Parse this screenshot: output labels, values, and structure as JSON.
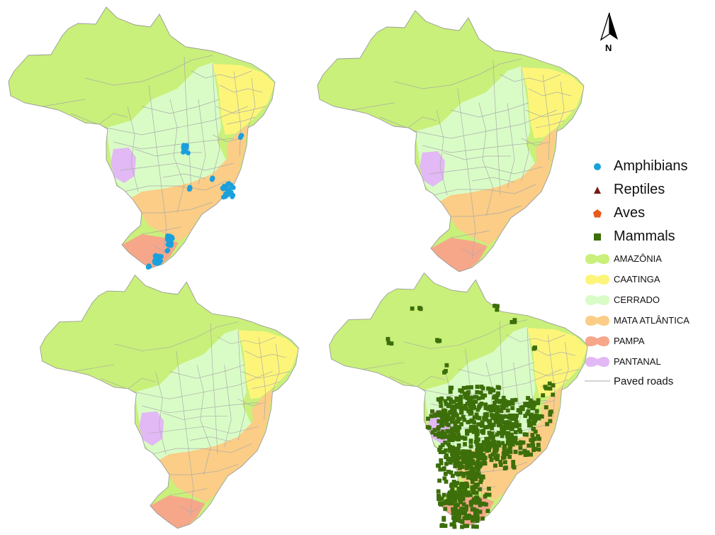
{
  "north_arrow": {
    "label": "N"
  },
  "legend": {
    "species": [
      {
        "label": "Amphibians",
        "symbol": "circle",
        "color": "#1aa0dc"
      },
      {
        "label": "Reptiles",
        "symbol": "triangle",
        "color": "#7a1a12"
      },
      {
        "label": "Aves",
        "symbol": "pentagon",
        "color": "#e85a1a"
      },
      {
        "label": "Mammals",
        "symbol": "square",
        "color": "#3c6e0a"
      }
    ],
    "biomes": [
      {
        "label": "AMAZÔNIA",
        "color": "#c9f07a"
      },
      {
        "label": "CAATINGA",
        "color": "#fdf57a"
      },
      {
        "label": "CERRADO",
        "color": "#d9fcc7"
      },
      {
        "label": "MATA ATLÂNTICA",
        "color": "#fbcd86"
      },
      {
        "label": "PAMPA",
        "color": "#f6a78a"
      },
      {
        "label": "PANTANAL",
        "color": "#e2b9f4"
      }
    ],
    "roads": {
      "label": "Paved roads",
      "color": "#a9a9a9"
    }
  },
  "maps": [
    {
      "taxon": "Amphibians",
      "symbol": "circle",
      "color": "#1aa0dc",
      "panel": "top-left"
    },
    {
      "taxon": "Reptiles",
      "symbol": "triangle",
      "color": "#7a1a12",
      "panel": "top-right"
    },
    {
      "taxon": "Aves",
      "symbol": "pentagon",
      "color": "#e85a1a",
      "panel": "bottom-left"
    },
    {
      "taxon": "Mammals",
      "symbol": "square",
      "color": "#3c6e0a",
      "panel": "bottom-right"
    }
  ]
}
